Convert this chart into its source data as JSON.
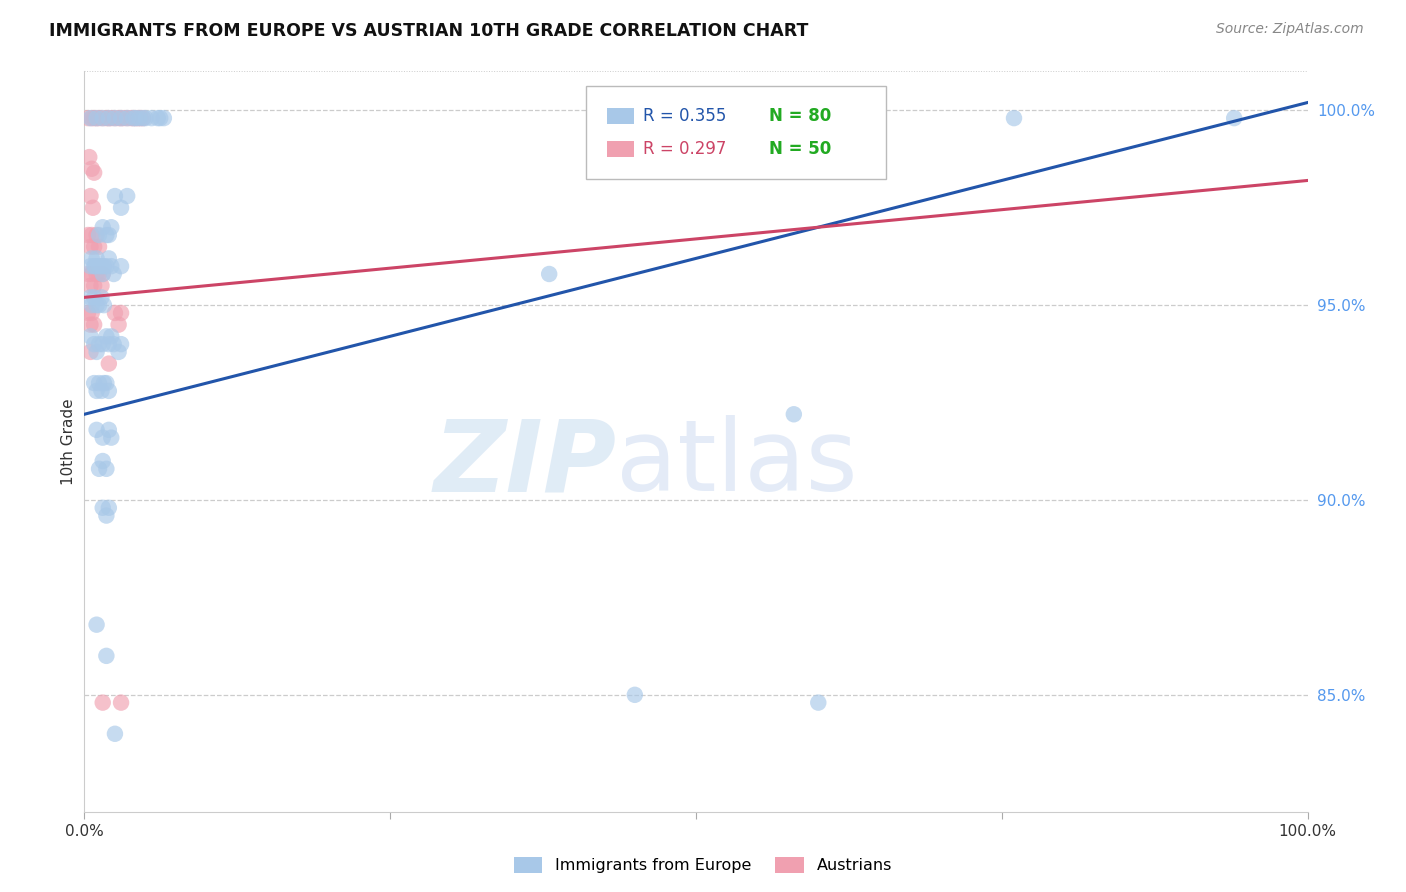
{
  "title": "IMMIGRANTS FROM EUROPE VS AUSTRIAN 10TH GRADE CORRELATION CHART",
  "source": "Source: ZipAtlas.com",
  "ylabel": "10th Grade",
  "legend_blue_r": "R = 0.355",
  "legend_blue_n": "N = 80",
  "legend_pink_r": "R = 0.297",
  "legend_pink_n": "N = 50",
  "blue_color": "#a8c8e8",
  "pink_color": "#f0a0b0",
  "blue_line_color": "#2255aa",
  "pink_line_color": "#cc4466",
  "n_color": "#22aa22",
  "r_blue_color": "#2255aa",
  "r_pink_color": "#cc4466",
  "blue_line": [
    [
      0.0,
      0.922
    ],
    [
      1.0,
      1.002
    ]
  ],
  "pink_line": [
    [
      0.0,
      0.952
    ],
    [
      1.0,
      0.982
    ]
  ],
  "blue_scatter": [
    [
      0.005,
      0.998
    ],
    [
      0.01,
      0.998
    ],
    [
      0.015,
      0.998
    ],
    [
      0.02,
      0.998
    ],
    [
      0.025,
      0.998
    ],
    [
      0.03,
      0.998
    ],
    [
      0.035,
      0.998
    ],
    [
      0.04,
      0.998
    ],
    [
      0.042,
      0.998
    ],
    [
      0.045,
      0.998
    ],
    [
      0.048,
      0.998
    ],
    [
      0.05,
      0.998
    ],
    [
      0.055,
      0.998
    ],
    [
      0.06,
      0.998
    ],
    [
      0.062,
      0.998
    ],
    [
      0.065,
      0.998
    ],
    [
      0.025,
      0.978
    ],
    [
      0.03,
      0.975
    ],
    [
      0.035,
      0.978
    ],
    [
      0.012,
      0.968
    ],
    [
      0.015,
      0.97
    ],
    [
      0.018,
      0.968
    ],
    [
      0.02,
      0.968
    ],
    [
      0.022,
      0.97
    ],
    [
      0.005,
      0.96
    ],
    [
      0.006,
      0.962
    ],
    [
      0.008,
      0.96
    ],
    [
      0.009,
      0.96
    ],
    [
      0.01,
      0.962
    ],
    [
      0.012,
      0.96
    ],
    [
      0.014,
      0.96
    ],
    [
      0.015,
      0.958
    ],
    [
      0.016,
      0.96
    ],
    [
      0.018,
      0.96
    ],
    [
      0.02,
      0.962
    ],
    [
      0.022,
      0.96
    ],
    [
      0.024,
      0.958
    ],
    [
      0.03,
      0.96
    ],
    [
      0.005,
      0.952
    ],
    [
      0.006,
      0.95
    ],
    [
      0.008,
      0.952
    ],
    [
      0.01,
      0.95
    ],
    [
      0.012,
      0.95
    ],
    [
      0.014,
      0.952
    ],
    [
      0.016,
      0.95
    ],
    [
      0.005,
      0.942
    ],
    [
      0.008,
      0.94
    ],
    [
      0.01,
      0.938
    ],
    [
      0.012,
      0.94
    ],
    [
      0.015,
      0.94
    ],
    [
      0.018,
      0.942
    ],
    [
      0.02,
      0.94
    ],
    [
      0.022,
      0.942
    ],
    [
      0.024,
      0.94
    ],
    [
      0.028,
      0.938
    ],
    [
      0.03,
      0.94
    ],
    [
      0.008,
      0.93
    ],
    [
      0.01,
      0.928
    ],
    [
      0.012,
      0.93
    ],
    [
      0.014,
      0.928
    ],
    [
      0.016,
      0.93
    ],
    [
      0.018,
      0.93
    ],
    [
      0.02,
      0.928
    ],
    [
      0.01,
      0.918
    ],
    [
      0.015,
      0.916
    ],
    [
      0.02,
      0.918
    ],
    [
      0.022,
      0.916
    ],
    [
      0.012,
      0.908
    ],
    [
      0.015,
      0.91
    ],
    [
      0.018,
      0.908
    ],
    [
      0.015,
      0.898
    ],
    [
      0.018,
      0.896
    ],
    [
      0.02,
      0.898
    ],
    [
      0.38,
      0.958
    ],
    [
      0.58,
      0.922
    ],
    [
      0.76,
      0.998
    ],
    [
      0.94,
      0.998
    ],
    [
      0.01,
      0.868
    ],
    [
      0.018,
      0.86
    ],
    [
      0.025,
      0.84
    ],
    [
      0.45,
      0.85
    ],
    [
      0.6,
      0.848
    ]
  ],
  "pink_scatter": [
    [
      0.003,
      0.998
    ],
    [
      0.006,
      0.998
    ],
    [
      0.008,
      0.998
    ],
    [
      0.01,
      0.998
    ],
    [
      0.012,
      0.998
    ],
    [
      0.015,
      0.998
    ],
    [
      0.018,
      0.998
    ],
    [
      0.02,
      0.998
    ],
    [
      0.022,
      0.998
    ],
    [
      0.025,
      0.998
    ],
    [
      0.028,
      0.998
    ],
    [
      0.03,
      0.998
    ],
    [
      0.032,
      0.998
    ],
    [
      0.035,
      0.998
    ],
    [
      0.038,
      0.998
    ],
    [
      0.04,
      0.998
    ],
    [
      0.042,
      0.998
    ],
    [
      0.044,
      0.998
    ],
    [
      0.046,
      0.998
    ],
    [
      0.048,
      0.998
    ],
    [
      0.004,
      0.988
    ],
    [
      0.006,
      0.985
    ],
    [
      0.008,
      0.984
    ],
    [
      0.005,
      0.978
    ],
    [
      0.007,
      0.975
    ],
    [
      0.003,
      0.968
    ],
    [
      0.005,
      0.965
    ],
    [
      0.006,
      0.968
    ],
    [
      0.008,
      0.965
    ],
    [
      0.01,
      0.968
    ],
    [
      0.012,
      0.965
    ],
    [
      0.003,
      0.958
    ],
    [
      0.005,
      0.955
    ],
    [
      0.006,
      0.958
    ],
    [
      0.008,
      0.955
    ],
    [
      0.01,
      0.958
    ],
    [
      0.012,
      0.958
    ],
    [
      0.014,
      0.955
    ],
    [
      0.015,
      0.958
    ],
    [
      0.003,
      0.948
    ],
    [
      0.005,
      0.945
    ],
    [
      0.006,
      0.948
    ],
    [
      0.008,
      0.945
    ],
    [
      0.025,
      0.948
    ],
    [
      0.028,
      0.945
    ],
    [
      0.03,
      0.948
    ],
    [
      0.005,
      0.938
    ],
    [
      0.02,
      0.935
    ],
    [
      0.015,
      0.848
    ],
    [
      0.03,
      0.848
    ]
  ],
  "xlim": [
    0.0,
    1.0
  ],
  "ylim": [
    0.82,
    1.01
  ],
  "yticks": [
    0.85,
    0.9,
    0.95,
    1.0
  ],
  "ytick_labels": [
    "85.0%",
    "90.0%",
    "95.0%",
    "100.0%"
  ],
  "xtick_labels": [
    "0.0%",
    "",
    "",
    "",
    "100.0%"
  ],
  "xticks": [
    0.0,
    0.25,
    0.5,
    0.75,
    1.0
  ],
  "grid_color": "#cccccc",
  "dot_size": 140
}
